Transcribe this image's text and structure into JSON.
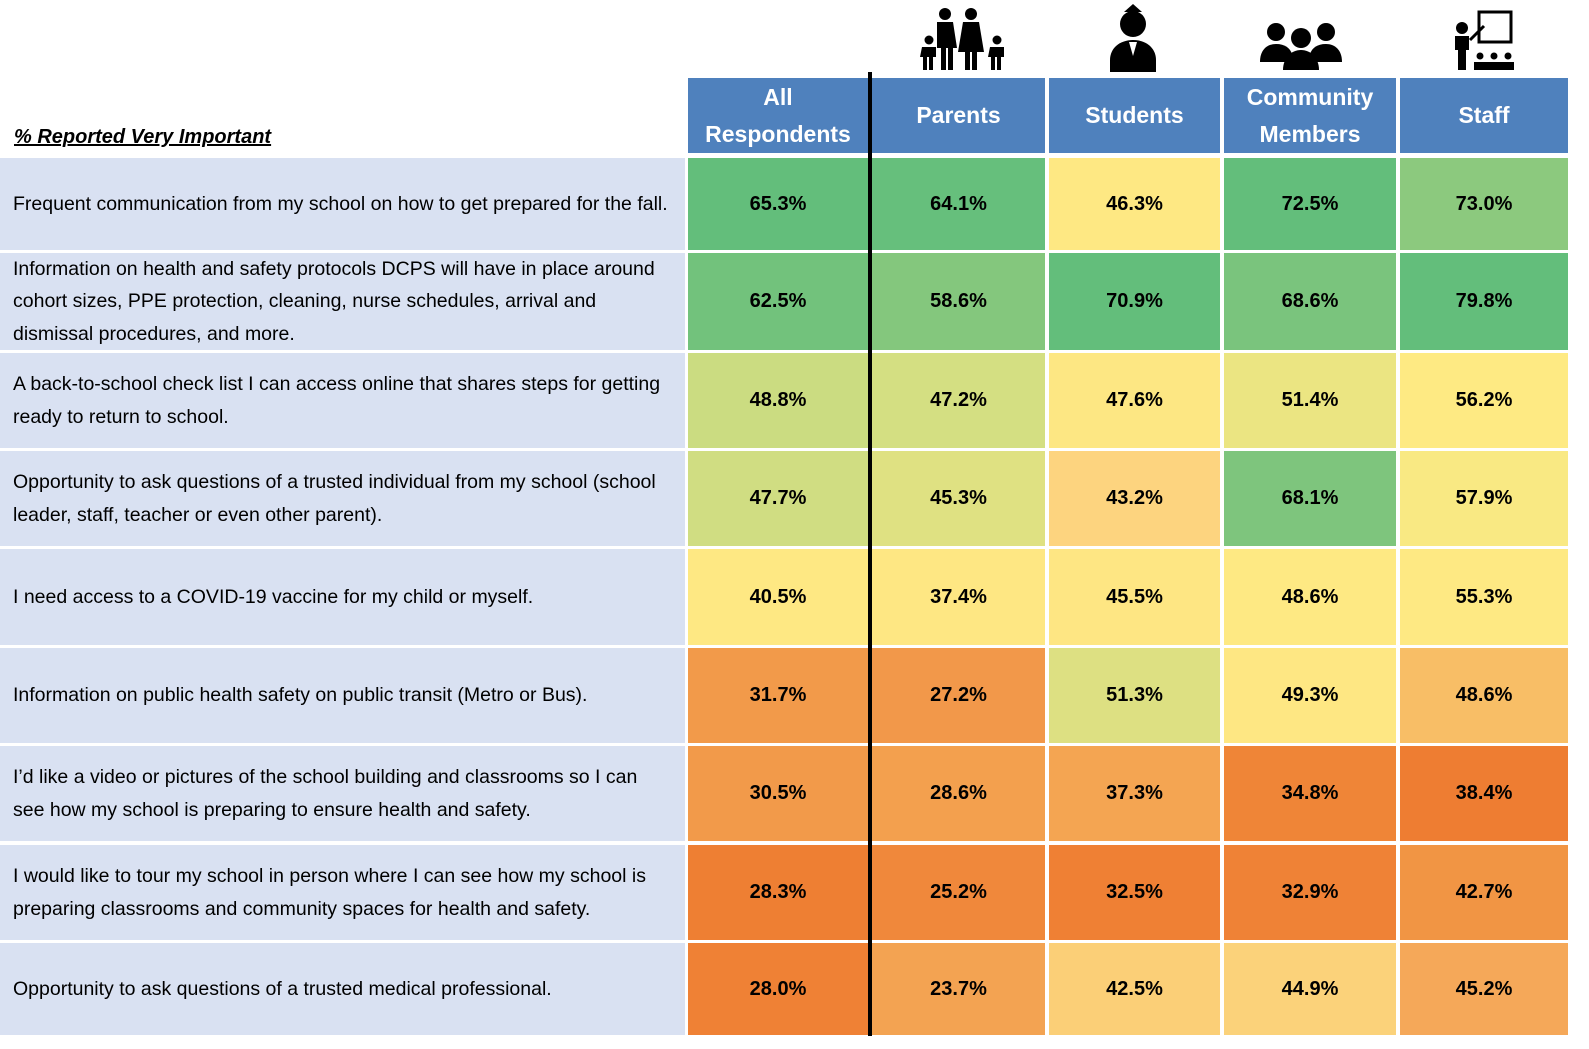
{
  "table": {
    "caption": "% Reported Very Important",
    "columns": [
      "All Respondents",
      "Parents",
      "Students",
      "Community Members",
      "Staff"
    ],
    "rows": [
      {
        "label": "Frequent communication from my school on how to get prepared for the fall.",
        "cells": [
          "65.3%",
          "64.1%",
          "46.3%",
          "72.5%",
          "73.0%"
        ],
        "colors": [
          "#63be7b",
          "#66bf7c",
          "#fee883",
          "#63be7b",
          "#8cc97e"
        ]
      },
      {
        "label": "Information on health and safety protocols DCPS will have in place around cohort sizes, PPE protection, cleaning, nurse schedules, arrival and dismissal procedures, and more.",
        "cells": [
          "62.5%",
          "58.6%",
          "70.9%",
          "68.6%",
          "79.8%"
        ],
        "colors": [
          "#72c27c",
          "#84c77d",
          "#63be7b",
          "#7ac47d",
          "#63be7b"
        ]
      },
      {
        "label": "A back-to-school check list I can access online that shares steps for getting ready to return to school.",
        "cells": [
          "48.8%",
          "47.2%",
          "47.6%",
          "51.4%",
          "56.2%"
        ],
        "colors": [
          "#cbdc81",
          "#d4df82",
          "#fde783",
          "#ebe582",
          "#feea83"
        ]
      },
      {
        "label": "Opportunity to ask questions of a trusted individual from my school (school leader, staff, teacher or even other parent).",
        "cells": [
          "47.7%",
          "45.3%",
          "43.2%",
          "68.1%",
          "57.9%"
        ],
        "colors": [
          "#d0dd82",
          "#dfe182",
          "#fdd47f",
          "#7ec57d",
          "#f9e983"
        ]
      },
      {
        "label": "I need access to a COVID-19 vaccine for my child or myself.",
        "cells": [
          "40.5%",
          "37.4%",
          "45.5%",
          "48.6%",
          "55.3%"
        ],
        "colors": [
          "#fee883",
          "#fee783",
          "#fee683",
          "#fee983",
          "#fee983"
        ]
      },
      {
        "label": "Information on public health safety on public transit (Metro or Bus).",
        "cells": [
          "31.7%",
          "27.2%",
          "51.3%",
          "49.3%",
          "48.6%"
        ],
        "colors": [
          "#f29a4a",
          "#f2984a",
          "#dde082",
          "#fee783",
          "#f8be66"
        ]
      },
      {
        "label": "I’d like a video or pictures of the school building and classrooms so I can see how my school is preparing to ensure health and safety.",
        "cells": [
          "30.5%",
          "28.6%",
          "37.3%",
          "34.8%",
          "38.4%"
        ],
        "colors": [
          "#f29a4a",
          "#f3a04e",
          "#f4a552",
          "#ef8537",
          "#ee7d32"
        ]
      },
      {
        "label": "I would like to tour my school in person where I can see how my school is preparing classrooms and community spaces for health and safety.",
        "cells": [
          "28.3%",
          "25.2%",
          "32.5%",
          "32.9%",
          "42.7%"
        ],
        "colors": [
          "#ee7f33",
          "#f0883b",
          "#ef8034",
          "#ef8236",
          "#f19544"
        ]
      },
      {
        "label": "Opportunity to ask questions of a trusted medical professional.",
        "cells": [
          "28.0%",
          "23.7%",
          "42.5%",
          "44.9%",
          "45.2%"
        ],
        "colors": [
          "#ef8135",
          "#f3a352",
          "#fbcf77",
          "#fbd27a",
          "#f5a859"
        ]
      }
    ]
  }
}
